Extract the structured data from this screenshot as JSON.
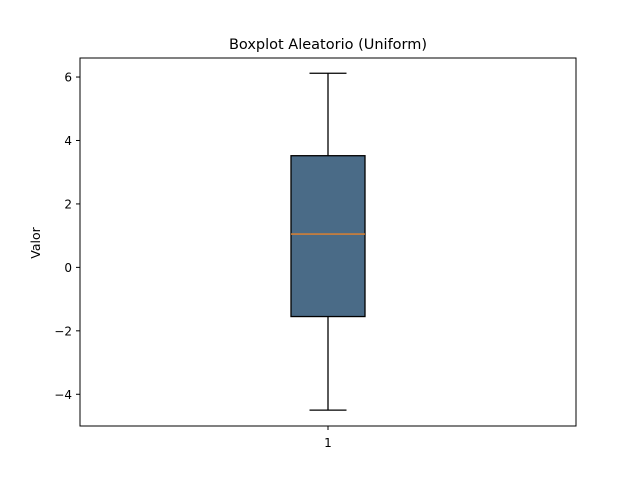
{
  "chart_data": {
    "type": "boxplot",
    "title": "Boxplot Aleatorio (Uniform)",
    "xlabel": "",
    "ylabel": "Valor",
    "categories": [
      "1"
    ],
    "series": [
      {
        "name": "",
        "boxes": [
          {
            "category": "1",
            "whisker_low": -4.5,
            "q1": -1.55,
            "median": 1.05,
            "q3": 3.52,
            "whisker_high": 6.12
          }
        ]
      }
    ],
    "ylim": [
      -5.0,
      6.6
    ],
    "yticks": [
      -4,
      -2,
      0,
      2,
      4,
      6
    ],
    "ytick_labels": [
      "−4",
      "−2",
      "0",
      "2",
      "4",
      "6"
    ],
    "grid": false,
    "legend": "none",
    "colors": {
      "box_fill": "#4a6b87",
      "box_edge": "#000000",
      "median_line": "#e8822a",
      "whisker": "#000000",
      "axes": "#000000"
    }
  }
}
